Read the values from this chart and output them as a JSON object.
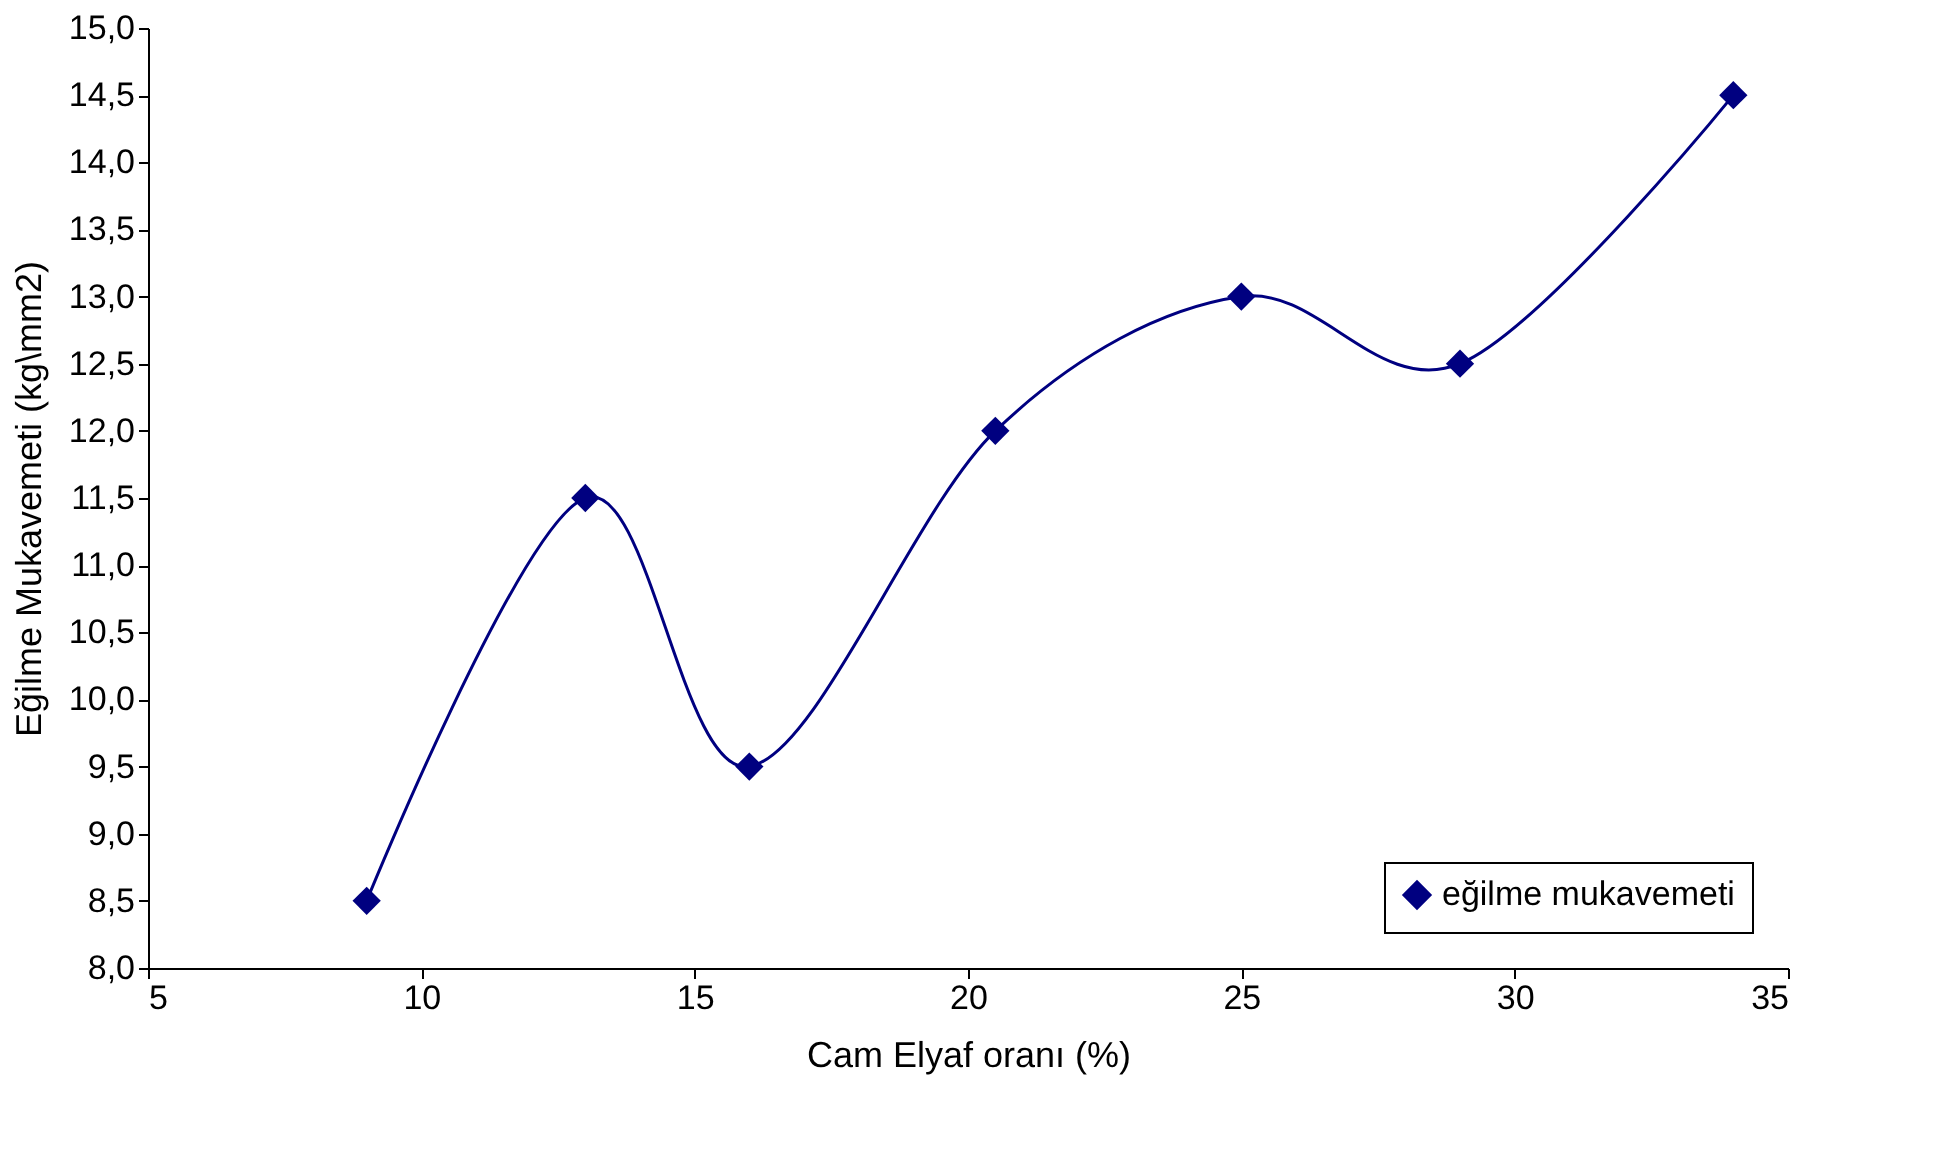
{
  "chart_data": {
    "type": "line",
    "xlabel": "Cam Elyaf oranı (%)",
    "ylabel": "Eğilme Mukavemeti (kg\\mm2)",
    "x": [
      9,
      13,
      16,
      20.5,
      25,
      29,
      34
    ],
    "series": [
      {
        "name": "eğilme mukavemeti",
        "color": "#000080",
        "values": [
          8.5,
          11.5,
          9.5,
          12.0,
          13.0,
          12.5,
          14.5
        ]
      }
    ],
    "xlim": [
      5,
      35
    ],
    "xticks": [
      5,
      10,
      15,
      20,
      25,
      30,
      35
    ],
    "ylim": [
      8,
      15
    ],
    "yticks": [
      {
        "value": 8,
        "label": "8,0"
      },
      {
        "value": 8.5,
        "label": "8,5"
      },
      {
        "value": 9,
        "label": "9,0"
      },
      {
        "value": 9.5,
        "label": "9,5"
      },
      {
        "value": 10,
        "label": "10,0"
      },
      {
        "value": 10.5,
        "label": "10,5"
      },
      {
        "value": 11,
        "label": "11,0"
      },
      {
        "value": 11.5,
        "label": "11,5"
      },
      {
        "value": 12,
        "label": "12,0"
      },
      {
        "value": 12.5,
        "label": "12,5"
      },
      {
        "value": 13,
        "label": "13,0"
      },
      {
        "value": 13.5,
        "label": "13,5"
      },
      {
        "value": 14,
        "label": "14,0"
      },
      {
        "value": 14.5,
        "label": "14,5"
      },
      {
        "value": 15,
        "label": "15,0"
      }
    ],
    "grid": false,
    "legend": "bottom right",
    "marker": "diamond",
    "line_style": "solid"
  }
}
